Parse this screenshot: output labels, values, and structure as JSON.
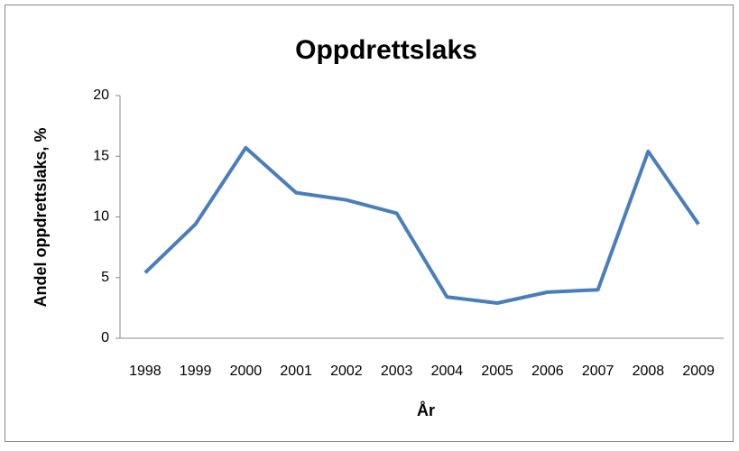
{
  "chart_data": {
    "type": "line",
    "title": "Oppdrettslaks",
    "x_label": "År",
    "y_label": "Andel oppdrettslaks, %",
    "categories": [
      "1998",
      "1999",
      "2000",
      "2001",
      "2002",
      "2003",
      "2004",
      "2005",
      "2006",
      "2007",
      "2008",
      "2009"
    ],
    "series": [
      {
        "name": "Andel oppdrettslaks",
        "color": "#4a7ebb",
        "values": [
          5.4,
          9.4,
          15.7,
          12.0,
          11.4,
          10.3,
          3.4,
          2.9,
          3.8,
          4.0,
          15.4,
          9.4
        ]
      }
    ],
    "ylim": [
      0,
      20
    ],
    "yticks": [
      0,
      5,
      10,
      15,
      20
    ],
    "grid": false
  }
}
